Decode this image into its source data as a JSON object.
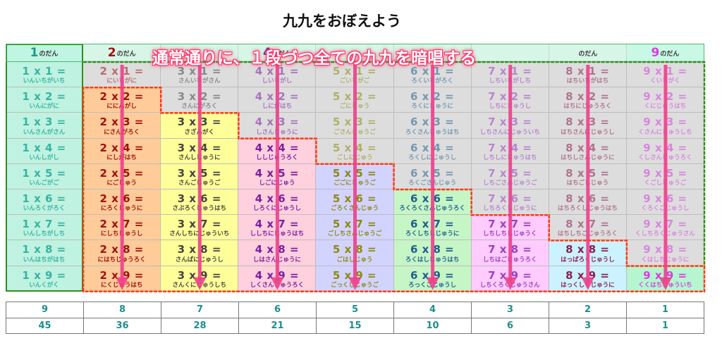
{
  "title": "九九をおぼえよう",
  "annotation": "通常通りに、１段づつ全ての九九を暗唱する",
  "header_suffix": "のだん",
  "colors": {
    "annotation": "#ff2d64",
    "arrow": "#ee3f8a",
    "mastered_frame": "#ff3a12",
    "pending_frame": "#2f8f1a",
    "pending_bg": "#dddddd"
  },
  "columns": [
    {
      "dan": "1",
      "header_bg": "#bff5e2",
      "header_color": "#1f9a86",
      "color": "#39b3a2",
      "cell_bg": "#bff2e0",
      "visible_header": true,
      "rows": [
        [
          "1 x 1 =",
          "いんいちがいち"
        ],
        [
          "1 x 2 =",
          "いんにがに"
        ],
        [
          "1 x 3 =",
          "いんさんがさん"
        ],
        [
          "1 x 4 =",
          "いんしがし"
        ],
        [
          "1 x 5 =",
          "いんごがご"
        ],
        [
          "1 x 6 =",
          "いんろくがろく"
        ],
        [
          "1 x 7 =",
          "いんしちがしち"
        ],
        [
          "1 x 8 =",
          "いんはちがはち"
        ],
        [
          "1 x 9 =",
          "いんくがく"
        ]
      ]
    },
    {
      "dan": "2",
      "header_bg": "#d8f6e8",
      "header_color": "#a01010",
      "color": "#a01010",
      "cell_bg": "#ffcc99",
      "visible_header": true,
      "rows": [
        [
          "2 x 1 =",
          "にいちがに"
        ],
        [
          "2 x 2 =",
          "ににんがし"
        ],
        [
          "2 x 3 =",
          "にさんがろく"
        ],
        [
          "2 x 4 =",
          "にしがはち"
        ],
        [
          "2 x 5 =",
          "にごじゅう"
        ],
        [
          "2 x 6 =",
          "にろくじゅうに"
        ],
        [
          "2 x 7 =",
          "にしちじゅうし"
        ],
        [
          "2 x 8 =",
          "にはちじゅうろく"
        ],
        [
          "2 x 9 =",
          "にくじゅうはち"
        ]
      ]
    },
    {
      "dan": "3",
      "header_bg": "#d8f6e8",
      "header_color": "#555555",
      "color": "#444444",
      "cell_bg": "#ffff99",
      "visible_header": false,
      "rows": [
        [
          "3 x 1 =",
          "さんいちがさん"
        ],
        [
          "3 x 2 =",
          "さんにがろく"
        ],
        [
          "3 x 3 =",
          "さざんがく"
        ],
        [
          "3 x 4 =",
          "さんしじゅうに"
        ],
        [
          "3 x 5 =",
          "さんごじゅうご"
        ],
        [
          "3 x 6 =",
          "さぶろくじゅうはち"
        ],
        [
          "3 x 7 =",
          "さんしちにじゅういち"
        ],
        [
          "3 x 8 =",
          "さんぱにじゅうし"
        ],
        [
          "3 x 9 =",
          "さんくにじゅうしち"
        ]
      ]
    },
    {
      "dan": "4",
      "header_bg": "#d8f6e8",
      "header_color": "#6b2fa0",
      "color": "#7a1fa0",
      "cell_bg": "#ffd0de",
      "visible_header": true,
      "rows": [
        [
          "4 x 1 =",
          "しいちがし"
        ],
        [
          "4 x 2 =",
          "しにがはち"
        ],
        [
          "4 x 3 =",
          "しさんじゅうに"
        ],
        [
          "4 x 4 =",
          "ししじゅうろく"
        ],
        [
          "4 x 5 =",
          "しごにじゅう"
        ],
        [
          "4 x 6 =",
          "しろくにじゅうし"
        ],
        [
          "4 x 7 =",
          "ししちにじゅうはち"
        ],
        [
          "4 x 8 =",
          "しはさんじゅうに"
        ],
        [
          "4 x 9 =",
          "しくさんじゅうろく"
        ]
      ]
    },
    {
      "dan": "5",
      "header_bg": "#d8f6e8",
      "header_color": "#8a8a10",
      "color": "#8a8a10",
      "cell_bg": "#d3d3ff",
      "visible_header": false,
      "rows": [
        [
          "5 x 1 =",
          "ごいちがご"
        ],
        [
          "5 x 2 =",
          "ごにじゅう"
        ],
        [
          "5 x 3 =",
          "ごさんじゅうご"
        ],
        [
          "5 x 4 =",
          "ごしにじゅう"
        ],
        [
          "5 x 5 =",
          "ごごにじゅうご"
        ],
        [
          "5 x 6 =",
          "ごろくさんじゅう"
        ],
        [
          "5 x 7 =",
          "ごしちさんじゅうご"
        ],
        [
          "5 x 8 =",
          "ごはしじゅう"
        ],
        [
          "5 x 9 =",
          "ごっくしじゅうご"
        ]
      ]
    },
    {
      "dan": "6",
      "header_bg": "#d8f6e8",
      "header_color": "#1f5f8f",
      "color": "#1f5f8f",
      "cell_bg": "#c6f5c6",
      "visible_header": false,
      "rows": [
        [
          "6 x 1 =",
          "ろくいちがろく"
        ],
        [
          "6 x 2 =",
          "ろくにじゅうに"
        ],
        [
          "6 x 3 =",
          "ろくさんじゅうはち"
        ],
        [
          "6 x 4 =",
          "ろくしにじゅうし"
        ],
        [
          "6 x 5 =",
          "ろくごさんじゅう"
        ],
        [
          "6 x 6 =",
          "ろくろくさんじゅうろく"
        ],
        [
          "6 x 7 =",
          "ろくしちしじゅうに"
        ],
        [
          "6 x 8 =",
          "ろくはしじゅうはち"
        ],
        [
          "6 x 9 =",
          "ろっくごじゅうし"
        ]
      ]
    },
    {
      "dan": "7",
      "header_bg": "#d8f6e8",
      "header_color": "#9a3fc0",
      "color": "#9a3fc0",
      "cell_bg": "#ffccff",
      "visible_header": false,
      "rows": [
        [
          "7 x 1 =",
          "しちいちがしち"
        ],
        [
          "7 x 2 =",
          "しちにじゅうし"
        ],
        [
          "7 x 3 =",
          "しちさんにじゅういち"
        ],
        [
          "7 x 4 =",
          "しちしにじゅうはち"
        ],
        [
          "7 x 5 =",
          "しちごさんじゅうご"
        ],
        [
          "7 x 6 =",
          "しちろくしじゅうに"
        ],
        [
          "7 x 7 =",
          "しちしちしじゅうく"
        ],
        [
          "7 x 8 =",
          "しちはごじゅうろく"
        ],
        [
          "7 x 9 =",
          "しちくろくじゅうさん"
        ]
      ]
    },
    {
      "dan": "8",
      "header_bg": "#d8f6e8",
      "header_color": "#8a2050",
      "color": "#8a2050",
      "cell_bg": "#ccf2ff",
      "visible_header": false,
      "header_suffix_only": true,
      "rows": [
        [
          "8 x 1 =",
          "はちいちがはち"
        ],
        [
          "8 x 2 =",
          "はちにじゅうろく"
        ],
        [
          "8 x 3 =",
          "はちさんにじゅうし"
        ],
        [
          "8 x 4 =",
          "はちしさんじゅうに"
        ],
        [
          "8 x 5 =",
          "はちごしじゅう"
        ],
        [
          "8 x 6 =",
          "はちろくしじゅうはち"
        ],
        [
          "8 x 7 =",
          "はちしちごじゅうろく"
        ],
        [
          "8 x 8 =",
          "はっぱろくじゅうし"
        ],
        [
          "8 x 9 =",
          "はっくしちじゅうに"
        ]
      ]
    },
    {
      "dan": "9",
      "header_bg": "#c9f9e6",
      "header_color": "#d63fe0",
      "color": "#d63fe0",
      "cell_bg": "#b5f5d0",
      "visible_header": true,
      "rows": [
        [
          "9 x 1 =",
          "くいちがく"
        ],
        [
          "9 x 2 =",
          "くにじゅうはち"
        ],
        [
          "9 x 3 =",
          "くさんにじゅうしち"
        ],
        [
          "9 x 4 =",
          "くしさんじゅうろく"
        ],
        [
          "9 x 5 =",
          "くごしじゅうご"
        ],
        [
          "9 x 6 =",
          "くろくごじゅうし"
        ],
        [
          "9 x 7 =",
          "くしちろくじゅうさん"
        ],
        [
          "9 x 8 =",
          "くはしちじゅうに"
        ],
        [
          "9 x 9 =",
          "くくはちじゅういち"
        ]
      ]
    }
  ],
  "summary": {
    "top": [
      "9",
      "8",
      "7",
      "6",
      "5",
      "4",
      "3",
      "2",
      "1"
    ],
    "bottom": [
      "45",
      "36",
      "28",
      "21",
      "15",
      "10",
      "6",
      "3",
      "1"
    ]
  }
}
